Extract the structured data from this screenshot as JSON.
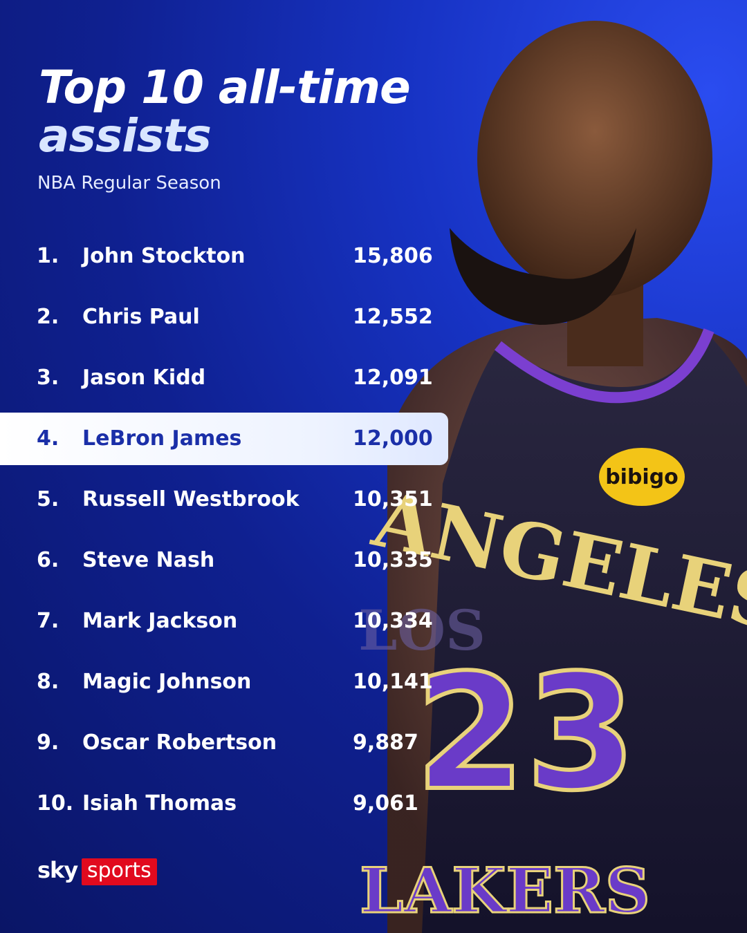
{
  "header": {
    "title_line1": "Top 10 all-time",
    "title_line2": "assists",
    "subtitle": "NBA Regular Season"
  },
  "rows": [
    {
      "rank": "1.",
      "name": "John Stockton",
      "value": "15,806",
      "highlight": false
    },
    {
      "rank": "2.",
      "name": "Chris Paul",
      "value": "12,552",
      "highlight": false
    },
    {
      "rank": "3.",
      "name": "Jason Kidd",
      "value": "12,091",
      "highlight": false
    },
    {
      "rank": "4.",
      "name": "LeBron James",
      "value": "12,000",
      "highlight": true
    },
    {
      "rank": "5.",
      "name": "Russell Westbrook",
      "value": "10,351",
      "highlight": false
    },
    {
      "rank": "6.",
      "name": "Steve Nash",
      "value": "10,335",
      "highlight": false
    },
    {
      "rank": "7.",
      "name": "Mark Jackson",
      "value": "10,334",
      "highlight": false
    },
    {
      "rank": "8.",
      "name": "Magic Johnson",
      "value": "10,141",
      "highlight": false
    },
    {
      "rank": "9.",
      "name": "Oscar Robertson",
      "value": "9,887",
      "highlight": false
    },
    {
      "rank": "10.",
      "name": "Isiah Thomas",
      "value": "9,061",
      "highlight": false
    }
  ],
  "photo": {
    "sponsor": "bibigo",
    "city": "ANGELES",
    "prefix": "LOS",
    "number": "23",
    "team": "LAKERS"
  },
  "footer": {
    "logo_sky": "sky",
    "logo_sports": "sports"
  }
}
